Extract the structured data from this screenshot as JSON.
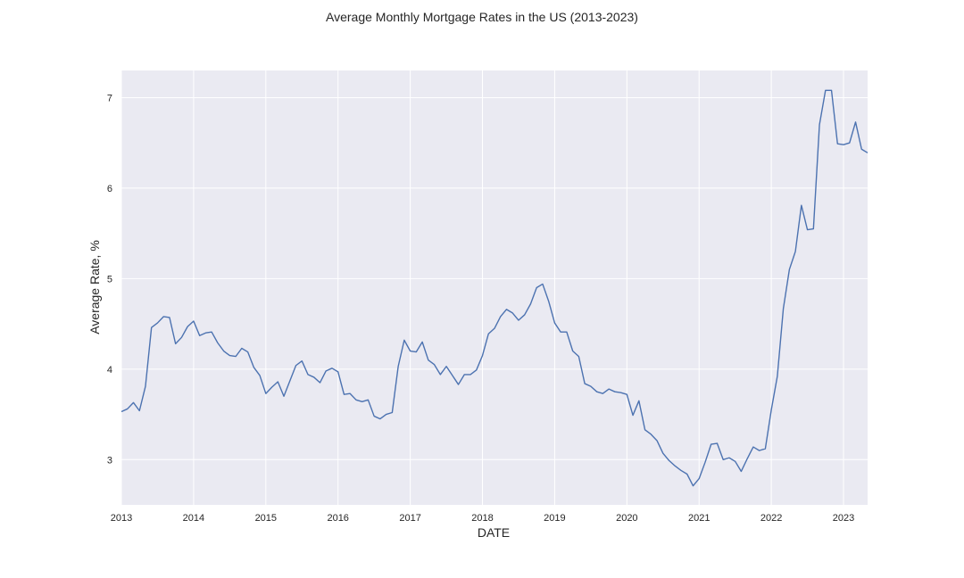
{
  "chart_data": {
    "type": "line",
    "title": "Average Monthly Mortgage Rates in the US (2013-2023)",
    "xlabel": "DATE",
    "ylabel": "Average Rate, %",
    "grid": true,
    "legend": "none",
    "xlim": [
      "2013-01",
      "2023-05"
    ],
    "ylim": [
      2.5,
      7.3
    ],
    "x_ticks": [
      "2013",
      "2014",
      "2015",
      "2016",
      "2017",
      "2018",
      "2019",
      "2020",
      "2021",
      "2022",
      "2023"
    ],
    "y_ticks": [
      3,
      4,
      5,
      6,
      7
    ],
    "colors": {
      "line": "#4c72b0",
      "plot_background": "#eaeaf2",
      "grid": "#ffffff"
    },
    "series": [
      {
        "x": [
          "2013-01",
          "2013-02",
          "2013-03",
          "2013-04",
          "2013-05",
          "2013-06",
          "2013-07",
          "2013-08",
          "2013-09",
          "2013-10",
          "2013-11",
          "2013-12",
          "2014-01",
          "2014-02",
          "2014-03",
          "2014-04",
          "2014-05",
          "2014-06",
          "2014-07",
          "2014-08",
          "2014-09",
          "2014-10",
          "2014-11",
          "2014-12",
          "2015-01",
          "2015-02",
          "2015-03",
          "2015-04",
          "2015-05",
          "2015-06",
          "2015-07",
          "2015-08",
          "2015-09",
          "2015-10",
          "2015-11",
          "2015-12",
          "2016-01",
          "2016-02",
          "2016-03",
          "2016-04",
          "2016-05",
          "2016-06",
          "2016-07",
          "2016-08",
          "2016-09",
          "2016-10",
          "2016-11",
          "2016-12",
          "2017-01",
          "2017-02",
          "2017-03",
          "2017-04",
          "2017-05",
          "2017-06",
          "2017-07",
          "2017-08",
          "2017-09",
          "2017-10",
          "2017-11",
          "2017-12",
          "2018-01",
          "2018-02",
          "2018-03",
          "2018-04",
          "2018-05",
          "2018-06",
          "2018-07",
          "2018-08",
          "2018-09",
          "2018-10",
          "2018-11",
          "2018-12",
          "2019-01",
          "2019-02",
          "2019-03",
          "2019-04",
          "2019-05",
          "2019-06",
          "2019-07",
          "2019-08",
          "2019-09",
          "2019-10",
          "2019-11",
          "2019-12",
          "2020-01",
          "2020-02",
          "2020-03",
          "2020-04",
          "2020-05",
          "2020-06",
          "2020-07",
          "2020-08",
          "2020-09",
          "2020-10",
          "2020-11",
          "2020-12",
          "2021-01",
          "2021-02",
          "2021-03",
          "2021-04",
          "2021-05",
          "2021-06",
          "2021-07",
          "2021-08",
          "2021-09",
          "2021-10",
          "2021-11",
          "2021-12",
          "2022-01",
          "2022-02",
          "2022-03",
          "2022-04",
          "2022-05",
          "2022-06",
          "2022-07",
          "2022-08",
          "2022-09",
          "2022-10",
          "2022-11",
          "2022-12",
          "2023-01",
          "2023-02",
          "2023-03",
          "2023-04",
          "2023-05"
        ],
        "y": [
          3.53,
          3.56,
          3.63,
          3.54,
          3.81,
          4.46,
          4.51,
          4.58,
          4.57,
          4.28,
          4.35,
          4.47,
          4.53,
          4.37,
          4.4,
          4.41,
          4.29,
          4.2,
          4.15,
          4.14,
          4.23,
          4.19,
          4.02,
          3.93,
          3.73,
          3.8,
          3.86,
          3.7,
          3.87,
          4.04,
          4.09,
          3.94,
          3.91,
          3.85,
          3.98,
          4.01,
          3.97,
          3.72,
          3.73,
          3.66,
          3.64,
          3.66,
          3.48,
          3.45,
          3.5,
          3.52,
          4.03,
          4.32,
          4.2,
          4.19,
          4.3,
          4.1,
          4.05,
          3.94,
          4.03,
          3.93,
          3.83,
          3.94,
          3.94,
          3.99,
          4.15,
          4.39,
          4.45,
          4.58,
          4.66,
          4.62,
          4.54,
          4.6,
          4.72,
          4.9,
          4.94,
          4.75,
          4.51,
          4.41,
          4.41,
          4.2,
          4.14,
          3.84,
          3.81,
          3.75,
          3.73,
          3.78,
          3.75,
          3.74,
          3.72,
          3.49,
          3.65,
          3.33,
          3.28,
          3.21,
          3.07,
          2.99,
          2.93,
          2.88,
          2.84,
          2.71,
          2.79,
          2.97,
          3.17,
          3.18,
          3.0,
          3.02,
          2.98,
          2.87,
          3.01,
          3.14,
          3.1,
          3.12,
          3.55,
          3.92,
          4.67,
          5.1,
          5.3,
          5.81,
          5.54,
          5.55,
          6.7,
          7.08,
          7.08,
          6.49,
          6.48,
          6.5,
          6.73,
          6.43,
          6.39
        ]
      }
    ]
  }
}
